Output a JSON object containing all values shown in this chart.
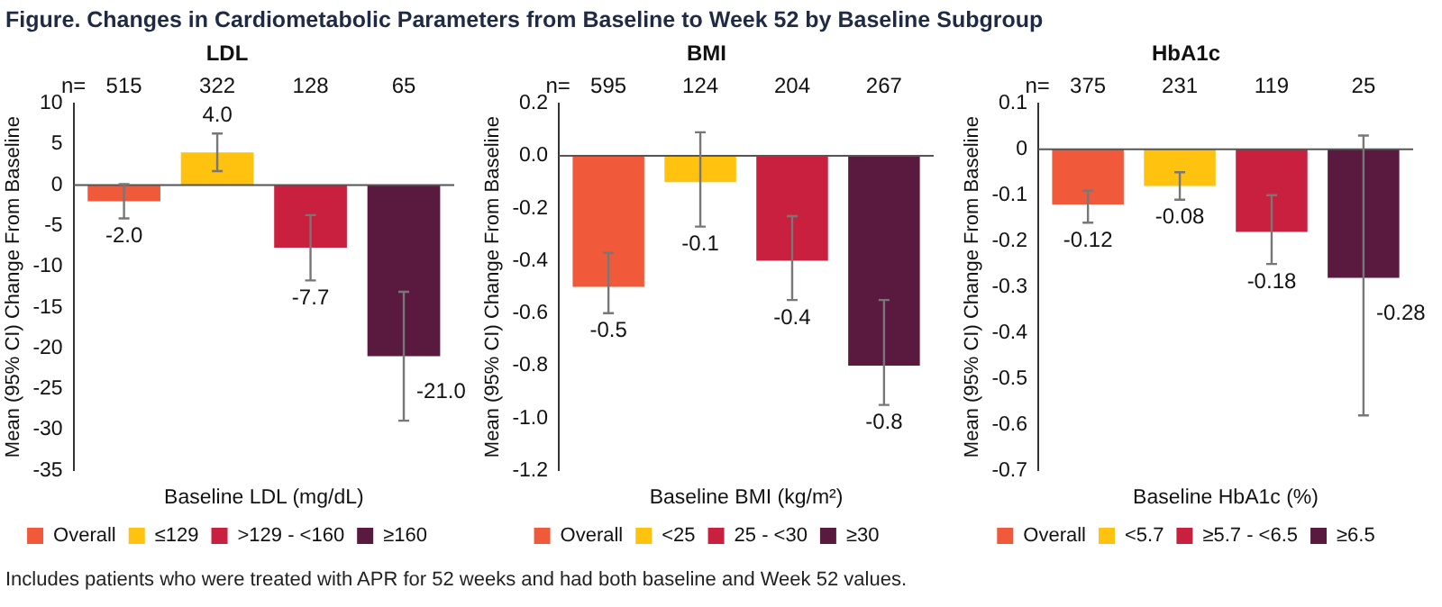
{
  "chart_data": [
    {
      "type": "other",
      "title": "Figure. Changes in Cardiometabolic Parameters from Baseline to Week 52 by Baseline Subgroup",
      "annotations": [
        "Includes patients who were treated with APR for 52 weeks and had both baseline and Week 52 values."
      ]
    },
    {
      "type": "bar",
      "title": "LDL",
      "xlabel": "Baseline LDL (mg/dL)",
      "ylabel": "Mean (95% CI) Change From Baseline",
      "categories": [
        null
      ],
      "series": [
        {
          "name": "Overall",
          "color": "#f05a3a",
          "values": [
            -2.0
          ],
          "errors": [
            [
              -4.1,
              0.1
            ]
          ],
          "value_labels": [
            "-2.0"
          ]
        },
        {
          "name": "≤129",
          "color": "#ffc20e",
          "values": [
            4.0
          ],
          "errors": [
            [
              1.7,
              6.3
            ]
          ],
          "value_labels": [
            "4.0"
          ]
        },
        {
          "name": ">129 - <160",
          "color": "#c8203e",
          "values": [
            -7.7
          ],
          "errors": [
            [
              -11.7,
              -3.7
            ]
          ],
          "value_labels": [
            "-7.7"
          ]
        },
        {
          "name": "≥160",
          "color": "#5a1a40",
          "values": [
            -21.0
          ],
          "errors": [
            [
              -28.9,
              -13.1
            ]
          ],
          "value_labels": [
            "-21.0"
          ]
        }
      ],
      "ylim": [
        -35,
        10
      ],
      "yticks": [
        -35,
        -30,
        -25,
        -20,
        -15,
        -10,
        -5,
        0,
        5,
        10
      ],
      "legend": "bottom",
      "annotations": [
        "n=",
        "515",
        "322",
        "128",
        "65"
      ]
    },
    {
      "type": "bar",
      "title": "BMI",
      "xlabel": "Baseline BMI (kg/m²)",
      "ylabel": "Mean (95% CI) Change From Baseline",
      "categories": [
        null
      ],
      "series": [
        {
          "name": "Overall",
          "color": "#f05a3a",
          "values": [
            -0.5
          ],
          "errors": [
            [
              -0.6,
              -0.37
            ]
          ],
          "value_labels": [
            "-0.5"
          ]
        },
        {
          "name": "<25",
          "color": "#ffc20e",
          "values": [
            -0.1
          ],
          "errors": [
            [
              -0.27,
              0.09
            ]
          ],
          "value_labels": [
            "-0.1"
          ]
        },
        {
          "name": "25 - <30",
          "color": "#c8203e",
          "values": [
            -0.4
          ],
          "errors": [
            [
              -0.55,
              -0.23
            ]
          ],
          "value_labels": [
            "-0.4"
          ]
        },
        {
          "name": "≥30",
          "color": "#5a1a40",
          "values": [
            -0.8
          ],
          "errors": [
            [
              -0.95,
              -0.55
            ]
          ],
          "value_labels": [
            "-0.8"
          ]
        }
      ],
      "ylim": [
        -1.2,
        0.2
      ],
      "yticks": [
        -1.2,
        {
          "value": -1,
          "label": "-1.0"
        },
        -0.8,
        -0.6,
        -0.4,
        -0.2,
        {
          "value": 0,
          "label": "0.0"
        },
        0.2
      ],
      "legend": "bottom",
      "annotations": [
        "n=",
        "595",
        "124",
        "204",
        "267"
      ]
    },
    {
      "type": "bar",
      "title": "HbA1c",
      "xlabel": "Baseline HbA1c (%)",
      "ylabel": "Mean (95% CI) Change From Baseline",
      "categories": [
        null
      ],
      "series": [
        {
          "name": "Overall",
          "color": "#f05a3a",
          "values": [
            -0.12
          ],
          "errors": [
            [
              -0.16,
              -0.09
            ]
          ],
          "value_labels": [
            "-0.12"
          ]
        },
        {
          "name": "<5.7",
          "color": "#ffc20e",
          "values": [
            -0.08
          ],
          "errors": [
            [
              -0.11,
              -0.05
            ]
          ],
          "value_labels": [
            "-0.08"
          ]
        },
        {
          "name": "≥5.7 - <6.5",
          "color": "#c8203e",
          "values": [
            -0.18
          ],
          "errors": [
            [
              -0.25,
              -0.1
            ]
          ],
          "value_labels": [
            "-0.18"
          ]
        },
        {
          "name": "≥6.5",
          "color": "#5a1a40",
          "values": [
            -0.28
          ],
          "errors": [
            [
              -0.58,
              0.03
            ]
          ],
          "value_labels": [
            "-0.28"
          ]
        }
      ],
      "ylim": [
        -0.7,
        0.1
      ],
      "yticks": [
        -0.7,
        -0.6,
        -0.5,
        -0.4,
        -0.3,
        -0.2,
        -0.1,
        0,
        0.1
      ],
      "legend": "bottom",
      "annotations": [
        "n=",
        "375",
        "231",
        "119",
        "25"
      ]
    }
  ]
}
